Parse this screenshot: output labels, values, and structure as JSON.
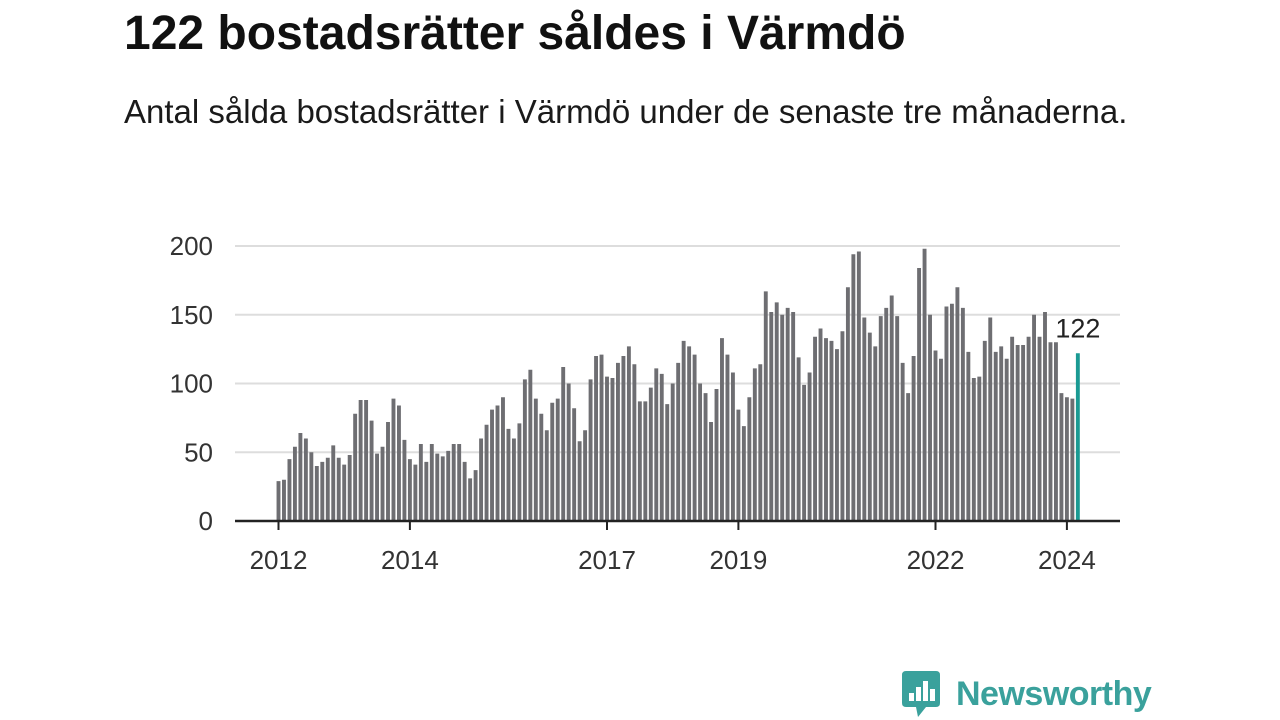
{
  "title": "122 bostadsrätter såldes i Värmdö",
  "subtitle": "Antal sålda bostadsrätter i Värmdö under de senaste tre månaderna.",
  "brand": {
    "name": "Newsworthy",
    "color": "#3aa19c"
  },
  "chart_data": {
    "type": "bar",
    "title": "122 bostadsrätter såldes i Värmdö",
    "subtitle": "Antal sålda bostadsrätter i Värmdö under de senaste tre månaderna.",
    "start": "2012-01",
    "frequency": "monthly",
    "ylim": [
      0,
      200
    ],
    "yticks": [
      0,
      50,
      100,
      150,
      200
    ],
    "xticks": [
      "2012",
      "2014",
      "2017",
      "2019",
      "2022",
      "2024"
    ],
    "grid": true,
    "colors": {
      "bars": "#6e6e72",
      "highlight": "#1a9a93",
      "grid": "#dddddd",
      "axis": "#222222"
    },
    "highlight_label": "122",
    "values": [
      29,
      30,
      45,
      54,
      64,
      60,
      50,
      40,
      43,
      46,
      55,
      46,
      41,
      48,
      78,
      88,
      88,
      73,
      49,
      54,
      72,
      89,
      84,
      59,
      45,
      41,
      56,
      43,
      56,
      49,
      47,
      51,
      56,
      56,
      43,
      31,
      37,
      60,
      70,
      81,
      84,
      90,
      67,
      60,
      71,
      103,
      110,
      89,
      78,
      66,
      86,
      89,
      112,
      100,
      82,
      58,
      66,
      103,
      120,
      121,
      105,
      104,
      115,
      120,
      127,
      114,
      87,
      87,
      97,
      111,
      107,
      85,
      100,
      115,
      131,
      127,
      121,
      100,
      93,
      72,
      96,
      133,
      121,
      108,
      81,
      69,
      90,
      111,
      114,
      167,
      152,
      159,
      150,
      155,
      152,
      119,
      99,
      108,
      134,
      140,
      133,
      131,
      125,
      138,
      170,
      194,
      196,
      148,
      137,
      127,
      149,
      155,
      164,
      149,
      115,
      93,
      120,
      184,
      198,
      150,
      124,
      118,
      156,
      158,
      170,
      155,
      123,
      104,
      105,
      131,
      148,
      123,
      127,
      118,
      134,
      128,
      128,
      134,
      150,
      134,
      152,
      130,
      130,
      93,
      90,
      89,
      122
    ]
  }
}
